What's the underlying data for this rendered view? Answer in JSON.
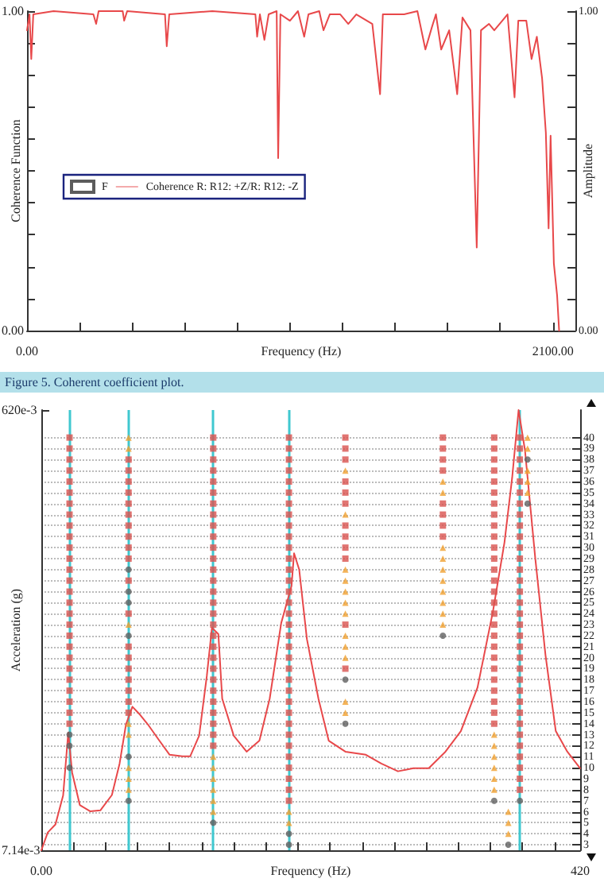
{
  "chart_data": [
    {
      "type": "line",
      "xlabel": "Frequency (Hz)",
      "ylabel": "Coherence Function",
      "y2label": "Amplitude",
      "annotations": [
        "Figure 5. Coherent coefficient plot."
      ],
      "xlim": [
        0,
        2190
      ],
      "xticks": [
        {
          "value": 0,
          "label": "0.00"
        },
        {
          "value": 210,
          "label": null
        },
        {
          "value": 420,
          "label": null
        },
        {
          "value": 630,
          "label": null
        },
        {
          "value": 840,
          "label": null
        },
        {
          "value": 1050,
          "label": null
        },
        {
          "value": 1260,
          "label": null
        },
        {
          "value": 1470,
          "label": null
        },
        {
          "value": 1680,
          "label": null
        },
        {
          "value": 1890,
          "label": null
        },
        {
          "value": 2100,
          "label": "2100.00"
        }
      ],
      "ylim": [
        0,
        1
      ],
      "yticks": [
        {
          "value": 0,
          "label": "0.00"
        },
        {
          "value": 0.1,
          "label": null
        },
        {
          "value": 0.2,
          "label": null
        },
        {
          "value": 0.3,
          "label": null
        },
        {
          "value": 0.4,
          "label": null
        },
        {
          "value": 0.5,
          "label": null
        },
        {
          "value": 0.6,
          "label": null
        },
        {
          "value": 0.7,
          "label": null
        },
        {
          "value": 0.8,
          "label": null
        },
        {
          "value": 0.9,
          "label": null
        },
        {
          "value": 1,
          "label": "1.00"
        }
      ],
      "y2lim": [
        0,
        1
      ],
      "y2ticks": [
        {
          "value": 0,
          "label": "0.00"
        },
        {
          "value": 0.1,
          "label": null
        },
        {
          "value": 0.2,
          "label": null
        },
        {
          "value": 0.3,
          "label": null
        },
        {
          "value": 0.4,
          "label": null
        },
        {
          "value": 0.5,
          "label": null
        },
        {
          "value": 0.6,
          "label": null
        },
        {
          "value": 0.7,
          "label": null
        },
        {
          "value": 0.8,
          "label": null
        },
        {
          "value": 0.9,
          "label": null
        },
        {
          "value": 1,
          "label": "1.00"
        }
      ],
      "legend": "left",
      "marker": "none",
      "line_style": "solid",
      "series": [
        {
          "name": "F",
          "type": "scatter",
          "color": "#ffffff"
        },
        {
          "name": "Coherence R: R12: +Z/R: R12: -Z",
          "color": "#e8484a",
          "x": [
            0,
            10,
            17,
            25,
            106,
            265,
            276,
            286,
            382,
            388,
            400,
            551,
            558,
            568,
            740,
            912,
            919,
            930,
            948,
            965,
            997,
            1003,
            1012,
            1050,
            1082,
            1107,
            1124,
            1167,
            1184,
            1209,
            1251,
            1283,
            1315,
            1379,
            1410,
            1421,
            1506,
            1559,
            1591,
            1617,
            1633,
            1654,
            1686,
            1718,
            1739,
            1771,
            1796,
            1813,
            1845,
            1866,
            1898,
            1919,
            1947,
            1962,
            1994,
            2015,
            2036,
            2057,
            2072,
            2083,
            2091,
            2104,
            2117,
            2125
          ],
          "values": [
            0.94,
            0.99,
            0.85,
            0.99,
            1,
            0.99,
            0.96,
            1,
            1,
            0.97,
            1,
            0.99,
            0.89,
            0.99,
            1,
            0.99,
            0.92,
            0.99,
            0.91,
            0.99,
            1,
            0.54,
            0.99,
            0.97,
            1,
            0.92,
            0.99,
            1,
            0.94,
            0.99,
            0.99,
            0.96,
            0.99,
            0.96,
            0.74,
            0.99,
            0.99,
            1,
            0.88,
            0.95,
            0.99,
            0.88,
            0.94,
            0.74,
            0.98,
            0.94,
            0.26,
            0.94,
            0.96,
            0.94,
            0.97,
            0.99,
            0.73,
            0.97,
            0.97,
            0.85,
            0.92,
            0.79,
            0.62,
            0.32,
            0.61,
            0.21,
            0.11,
            0
          ]
        }
      ]
    },
    {
      "type": "line",
      "xlabel": "Frequency (Hz)",
      "ylabel": "Acceleration (g)",
      "log": "y",
      "grid": "y",
      "line_style": "solid",
      "xlim": [
        0,
        420
      ],
      "xticks": [
        {
          "value": 0,
          "label": "0.00"
        },
        {
          "value": 25,
          "label": null
        },
        {
          "value": 50,
          "label": null
        },
        {
          "value": 75,
          "label": null
        },
        {
          "value": 100,
          "label": null
        },
        {
          "value": 125,
          "label": null
        },
        {
          "value": 150,
          "label": null
        },
        {
          "value": 175,
          "label": null
        },
        {
          "value": 200,
          "label": null
        },
        {
          "value": 225,
          "label": null
        },
        {
          "value": 250,
          "label": null
        },
        {
          "value": 275,
          "label": null
        },
        {
          "value": 300,
          "label": null
        },
        {
          "value": 325,
          "label": null
        },
        {
          "value": 350,
          "label": null
        },
        {
          "value": 375,
          "label": null
        },
        {
          "value": 400,
          "label": null
        },
        {
          "value": 420,
          "label": "420"
        }
      ],
      "ylim": [
        0.00714,
        0.62
      ],
      "yticks": [
        {
          "value": 0.00714,
          "label": "7.14e-3"
        },
        {
          "value": 0.62,
          "label": "620e-3"
        }
      ],
      "y2lim": [
        2.5,
        42.5
      ],
      "y2ticks": [
        3,
        4,
        5,
        6,
        7,
        8,
        9,
        10,
        11,
        12,
        13,
        14,
        15,
        16,
        17,
        18,
        19,
        20,
        21,
        22,
        23,
        24,
        25,
        26,
        27,
        28,
        29,
        30,
        31,
        32,
        33,
        34,
        35,
        36,
        37,
        38,
        39,
        40
      ],
      "ref_lines": [
        {
          "axis": "x",
          "value": 22,
          "color": "#40c8d0"
        },
        {
          "axis": "x",
          "value": 68,
          "color": "#40c8d0"
        },
        {
          "axis": "x",
          "value": 134,
          "color": "#40c8d0"
        },
        {
          "axis": "x",
          "value": 193,
          "color": "#40c8d0"
        },
        {
          "axis": "x",
          "value": 373,
          "color": "#40c8d0"
        }
      ],
      "series": [
        {
          "color": "#e8484a",
          "marker": "none",
          "x": [
            0,
            5,
            11,
            17,
            21,
            24,
            30,
            38,
            46,
            55,
            61,
            66,
            71,
            77,
            83,
            92,
            100,
            110,
            116,
            123,
            129,
            133,
            138,
            141,
            150,
            160,
            170,
            178,
            187,
            195,
            197,
            201,
            207,
            216,
            224,
            237,
            253,
            265,
            278,
            290,
            302,
            315,
            327,
            340,
            352,
            361,
            367,
            372,
            377,
            385,
            393,
            401,
            410,
            420
          ],
          "values": [
            0.00714,
            0.00855,
            0.00928,
            0.01245,
            0.0236,
            0.0157,
            0.0113,
            0.0106,
            0.0107,
            0.0125,
            0.0172,
            0.0256,
            0.0306,
            0.0282,
            0.0256,
            0.0217,
            0.0188,
            0.0185,
            0.0185,
            0.0228,
            0.0418,
            0.0682,
            0.0639,
            0.0332,
            0.0228,
            0.0194,
            0.0217,
            0.0332,
            0.0716,
            0.104,
            0.145,
            0.123,
            0.0608,
            0.0332,
            0.0217,
            0.0194,
            0.0188,
            0.0172,
            0.0159,
            0.0164,
            0.0164,
            0.0194,
            0.0239,
            0.0372,
            0.0803,
            0.162,
            0.312,
            0.62,
            0.412,
            0.138,
            0.0516,
            0.0239,
            0.0194,
            0.0164
          ]
        },
        {
          "type": "scatter",
          "axis": "y2",
          "marker": "square",
          "color": "#d9534f",
          "x": [
            22,
            22,
            22,
            22,
            22,
            22,
            22,
            22,
            22,
            22,
            22,
            22,
            22,
            22,
            22,
            22,
            22,
            22,
            22,
            22,
            22,
            22,
            22,
            22,
            22,
            22,
            22,
            68,
            68,
            68,
            68,
            68,
            68,
            68,
            68,
            68,
            68,
            68,
            68,
            68,
            68,
            68,
            68,
            68,
            68,
            68,
            134,
            134,
            134,
            134,
            134,
            134,
            134,
            134,
            134,
            134,
            134,
            134,
            134,
            134,
            134,
            134,
            134,
            134,
            134,
            134,
            134,
            134,
            134,
            134,
            134,
            134,
            134,
            134,
            134,
            193,
            193,
            193,
            193,
            193,
            193,
            193,
            193,
            193,
            193,
            193,
            193,
            193,
            193,
            193,
            193,
            193,
            193,
            193,
            193,
            193,
            193,
            193,
            193,
            193,
            193,
            193,
            193,
            193,
            193,
            193,
            193,
            193,
            193,
            237,
            237,
            237,
            237,
            237,
            237,
            237,
            237,
            237,
            237,
            237,
            237,
            313,
            313,
            313,
            313,
            313,
            313,
            313,
            313,
            353,
            353,
            353,
            353,
            353,
            353,
            353,
            353,
            353,
            353,
            353,
            353,
            353,
            353,
            353,
            353,
            353,
            353,
            353,
            353,
            353,
            353,
            353,
            353,
            353,
            353,
            353,
            373,
            373,
            373,
            373,
            373,
            373,
            373,
            373,
            373,
            373,
            373,
            373,
            373,
            373,
            373,
            373,
            373,
            373,
            373,
            373,
            373,
            373,
            373,
            373,
            373,
            373,
            373,
            373,
            373,
            373,
            373,
            373,
            373
          ],
          "values": [
            14,
            15,
            16,
            17,
            18,
            19,
            20,
            21,
            22,
            23,
            24,
            25,
            26,
            27,
            28,
            29,
            30,
            31,
            32,
            33,
            34,
            35,
            36,
            37,
            38,
            39,
            40,
            15,
            16,
            17,
            18,
            19,
            20,
            21,
            24,
            27,
            29,
            30,
            31,
            32,
            33,
            34,
            35,
            36,
            37,
            38,
            12,
            13,
            14,
            15,
            16,
            17,
            18,
            19,
            20,
            21,
            22,
            23,
            24,
            25,
            26,
            27,
            28,
            29,
            30,
            31,
            32,
            33,
            34,
            35,
            36,
            37,
            38,
            39,
            40,
            7,
            8,
            9,
            10,
            11,
            12,
            13,
            14,
            15,
            16,
            17,
            18,
            19,
            20,
            21,
            22,
            23,
            24,
            25,
            26,
            27,
            28,
            29,
            30,
            31,
            32,
            33,
            34,
            35,
            36,
            37,
            38,
            39,
            40,
            19,
            23,
            29,
            30,
            31,
            32,
            34,
            35,
            36,
            38,
            39,
            40,
            31,
            32,
            33,
            34,
            37,
            38,
            39,
            40,
            14,
            15,
            16,
            17,
            18,
            19,
            20,
            21,
            22,
            23,
            24,
            25,
            26,
            27,
            28,
            29,
            30,
            31,
            32,
            33,
            34,
            35,
            36,
            37,
            38,
            39,
            40,
            8,
            9,
            10,
            11,
            12,
            13,
            14,
            15,
            16,
            17,
            18,
            19,
            20,
            21,
            22,
            23,
            24,
            25,
            26,
            27,
            28,
            29,
            30,
            31,
            32,
            33,
            34,
            35,
            36,
            37,
            38,
            39,
            40
          ]
        },
        {
          "type": "scatter",
          "axis": "y2",
          "marker": "triangle",
          "color": "#f0a030",
          "x": [
            68,
            68,
            68,
            68,
            68,
            68,
            68,
            68,
            134,
            134,
            134,
            134,
            134,
            134,
            193,
            193,
            237,
            237,
            237,
            237,
            237,
            237,
            237,
            237,
            237,
            237,
            237,
            237,
            313,
            313,
            313,
            313,
            313,
            313,
            313,
            313,
            313,
            313,
            353,
            353,
            353,
            353,
            353,
            353,
            364,
            364,
            364,
            379,
            379,
            379,
            379,
            379
          ],
          "values": [
            40,
            39,
            23,
            14,
            13,
            10,
            9,
            8,
            6,
            7,
            8,
            9,
            10,
            11,
            5,
            6,
            37,
            33,
            28,
            27,
            26,
            25,
            24,
            22,
            21,
            20,
            16,
            15,
            23,
            24,
            25,
            26,
            27,
            28,
            29,
            30,
            35,
            36,
            8,
            9,
            10,
            11,
            12,
            13,
            4,
            5,
            6,
            40,
            39,
            37,
            36,
            35
          ]
        },
        {
          "type": "scatter",
          "axis": "y2",
          "marker": "circle",
          "color": "#606060",
          "x": [
            22,
            22,
            22,
            68,
            68,
            68,
            68,
            68,
            68,
            134,
            193,
            193,
            237,
            237,
            313,
            353,
            364,
            373,
            379,
            379
          ],
          "values": [
            13,
            12,
            10,
            28,
            26,
            25,
            22,
            11,
            7,
            5,
            3,
            4,
            18,
            14,
            22,
            7,
            3,
            7,
            38,
            34
          ]
        }
      ]
    }
  ]
}
